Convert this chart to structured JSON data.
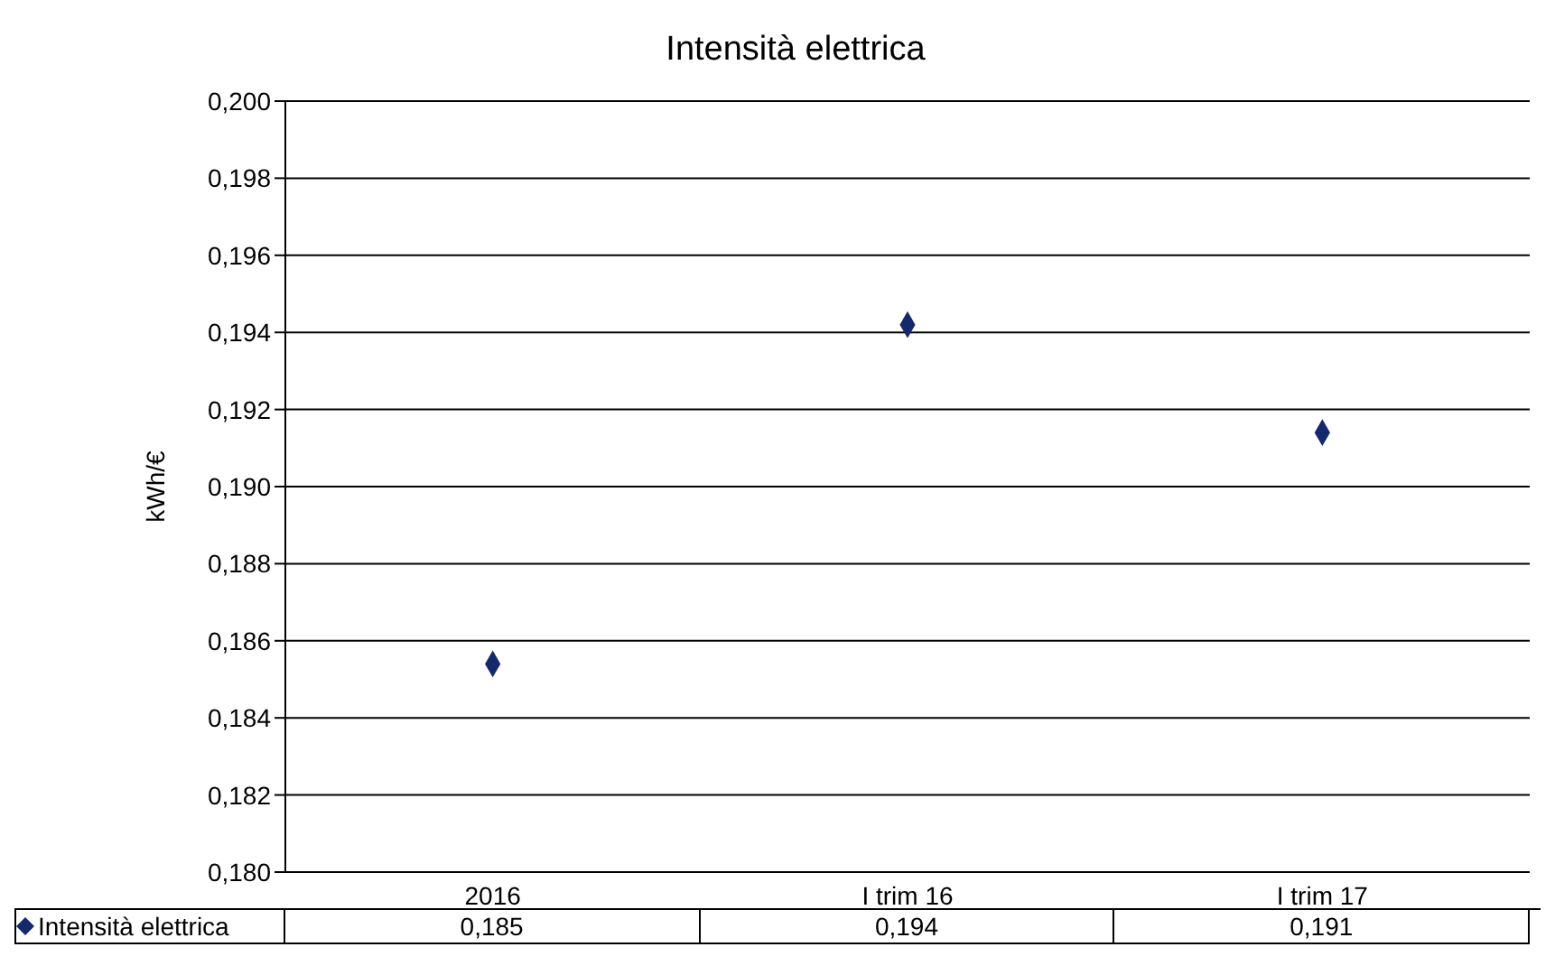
{
  "chart_data": {
    "type": "scatter",
    "title": "Intensità elettrica",
    "ylabel": "kWh/€",
    "categories": [
      "2016",
      "I trim 16",
      "I trim 17"
    ],
    "series": [
      {
        "name": "Intensità elettrica",
        "color": "#14286e",
        "values": [
          0.1854,
          0.1942,
          0.1914
        ],
        "value_labels": [
          "0,185",
          "0,194",
          "0,191"
        ]
      }
    ],
    "ylim": [
      0.18,
      0.2
    ],
    "yticks": [
      {
        "value": 0.18,
        "label": "0,180"
      },
      {
        "value": 0.182,
        "label": "0,182"
      },
      {
        "value": 0.184,
        "label": "0,184"
      },
      {
        "value": 0.186,
        "label": "0,186"
      },
      {
        "value": 0.188,
        "label": "0,188"
      },
      {
        "value": 0.19,
        "label": "0,190"
      },
      {
        "value": 0.192,
        "label": "0,192"
      },
      {
        "value": 0.194,
        "label": "0,194"
      },
      {
        "value": 0.196,
        "label": "0,196"
      },
      {
        "value": 0.198,
        "label": "0,198"
      },
      {
        "value": 0.2,
        "label": "0,200"
      }
    ],
    "grid": "y",
    "marker": "diamond",
    "legend": "bottom"
  }
}
